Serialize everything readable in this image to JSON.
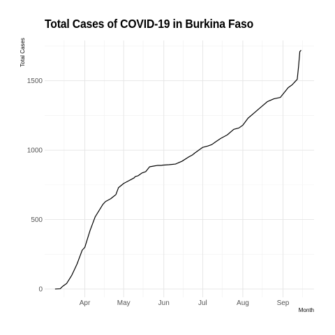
{
  "chart_data": {
    "type": "line",
    "title": "Total Cases of COVID-19 in Burkina Faso",
    "xlabel": "Month",
    "ylabel": "Total Cases",
    "x_tick_labels": [
      "Apr",
      "May",
      "Jun",
      "Jul",
      "Aug",
      "Sep"
    ],
    "y_tick_labels": [
      "0",
      "500",
      "1000",
      "1500"
    ],
    "ylim": [
      -60,
      1790
    ],
    "xlim": [
      "2020-03-01",
      "2020-09-25"
    ],
    "grid": true,
    "line_color": "#000000",
    "series": [
      {
        "x": [
          "2020-03-09",
          "2020-03-13",
          "2020-03-15",
          "2020-03-18",
          "2020-03-20",
          "2020-03-22",
          "2020-03-24",
          "2020-03-26",
          "2020-03-28",
          "2020-03-30",
          "2020-04-01",
          "2020-04-03",
          "2020-04-05",
          "2020-04-07",
          "2020-04-09",
          "2020-04-11",
          "2020-04-13",
          "2020-04-15",
          "2020-04-17",
          "2020-04-19",
          "2020-04-21",
          "2020-04-23",
          "2020-04-25",
          "2020-04-27",
          "2020-04-29",
          "2020-05-01",
          "2020-05-04",
          "2020-05-07",
          "2020-05-09",
          "2020-05-10",
          "2020-05-12",
          "2020-05-15",
          "2020-05-18",
          "2020-05-21",
          "2020-05-24",
          "2020-05-27",
          "2020-05-30",
          "2020-05-31",
          "2020-06-05",
          "2020-06-10",
          "2020-06-15",
          "2020-06-20",
          "2020-06-23",
          "2020-06-25",
          "2020-06-28",
          "2020-07-01",
          "2020-07-05",
          "2020-07-08",
          "2020-07-11",
          "2020-07-15",
          "2020-07-20",
          "2020-07-25",
          "2020-07-29",
          "2020-08-01",
          "2020-08-05",
          "2020-08-10",
          "2020-08-15",
          "2020-08-20",
          "2020-08-25",
          "2020-08-30",
          "2020-09-05",
          "2020-09-08",
          "2020-09-10",
          "2020-09-12",
          "2020-09-13",
          "2020-09-14",
          "2020-09-15"
        ],
        "y": [
          0,
          2,
          20,
          40,
          70,
          100,
          140,
          180,
          230,
          280,
          300,
          360,
          420,
          470,
          520,
          550,
          580,
          610,
          630,
          640,
          650,
          665,
          680,
          730,
          745,
          760,
          775,
          790,
          800,
          810,
          815,
          835,
          845,
          880,
          885,
          890,
          890,
          892,
          895,
          900,
          920,
          950,
          965,
          980,
          1000,
          1020,
          1030,
          1040,
          1060,
          1085,
          1110,
          1150,
          1160,
          1180,
          1230,
          1270,
          1310,
          1350,
          1370,
          1380,
          1450,
          1470,
          1490,
          1510,
          1600,
          1710,
          1720
        ]
      }
    ]
  }
}
